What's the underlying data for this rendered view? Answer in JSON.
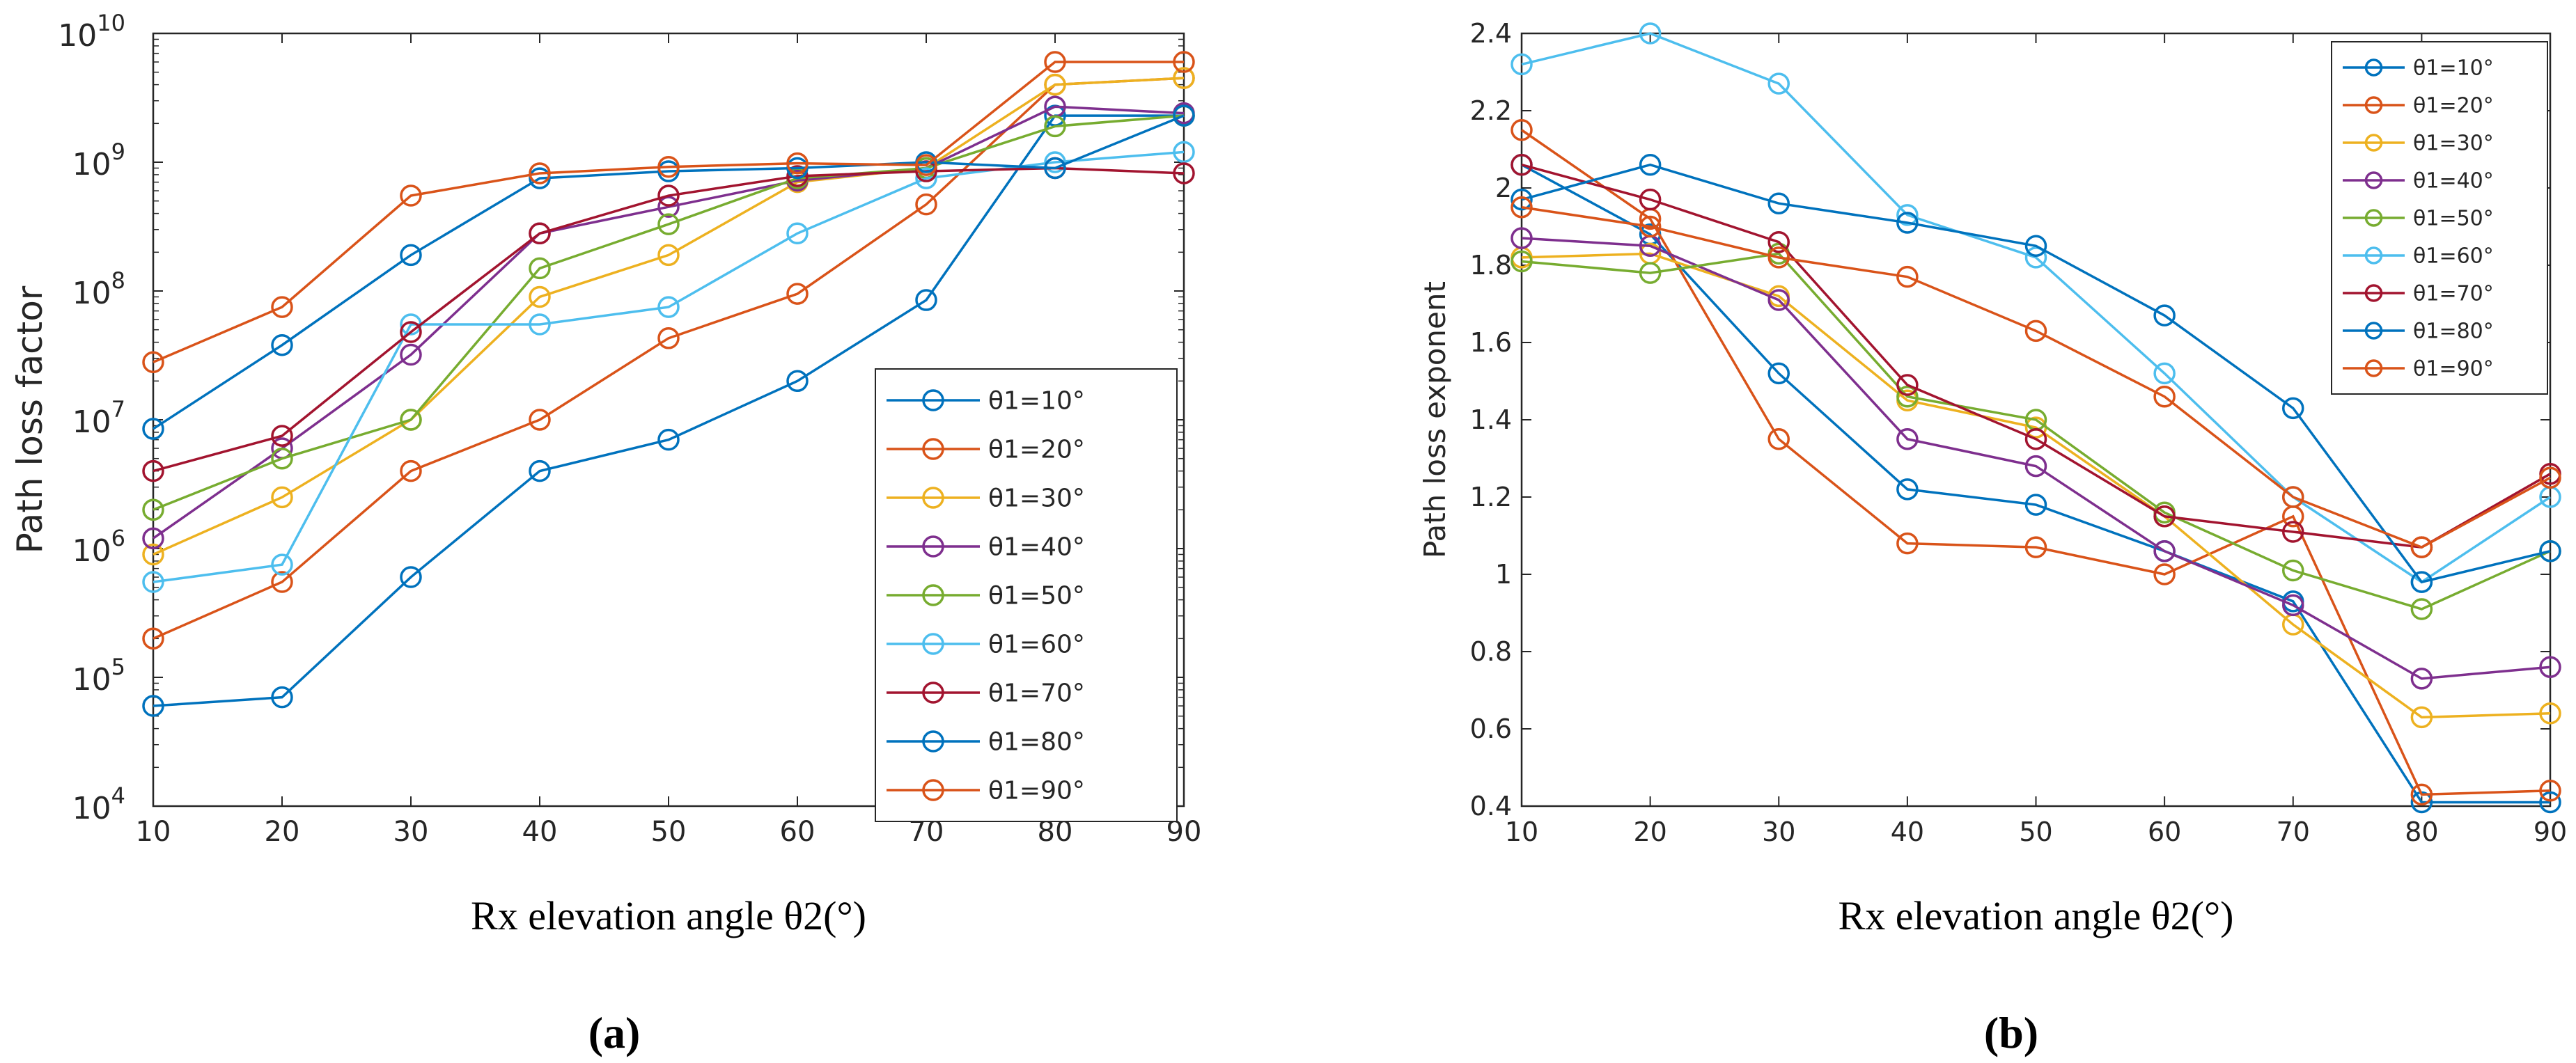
{
  "figure": {
    "panel_a_label": "(a)",
    "panel_b_label": "(b)"
  },
  "chart_data": [
    {
      "type": "line",
      "id": "a",
      "yscale": "log",
      "title": "",
      "xlabel": "Rx elevation angle θ2(°)",
      "ylabel": "Path loss factor",
      "x": [
        10,
        20,
        30,
        40,
        50,
        60,
        70,
        80,
        90
      ],
      "xlim": [
        10,
        90
      ],
      "ylim": [
        10000,
        10000000000
      ],
      "xticks": [
        "10",
        "20",
        "30",
        "40",
        "50",
        "60",
        "70",
        "80",
        "90"
      ],
      "yticks": [
        {
          "base": "10",
          "exp": "4"
        },
        {
          "base": "10",
          "exp": "5"
        },
        {
          "base": "10",
          "exp": "6"
        },
        {
          "base": "10",
          "exp": "7"
        },
        {
          "base": "10",
          "exp": "8"
        },
        {
          "base": "10",
          "exp": "9"
        },
        {
          "base": "10",
          "exp": "10"
        }
      ],
      "legend_position": "bottom-right",
      "series": [
        {
          "name": "θ1=10°",
          "color": "#0072BD",
          "values": [
            60000,
            70000,
            600000,
            4000000,
            7000000,
            20000000,
            85000000,
            2300000000,
            2300000000
          ]
        },
        {
          "name": "θ1=20°",
          "color": "#D95319",
          "values": [
            200000,
            550000,
            4000000,
            10000000,
            43000000,
            95000000,
            470000000,
            4000000000,
            4500000000
          ]
        },
        {
          "name": "θ1=30°",
          "color": "#EDB120",
          "values": [
            900000,
            2500000,
            10000000,
            90000000,
            190000000,
            700000000,
            900000000,
            4000000000,
            4500000000
          ]
        },
        {
          "name": "θ1=40°",
          "color": "#7E2F8E",
          "values": [
            1200000,
            6000000,
            32000000,
            280000000,
            450000000,
            720000000,
            900000000,
            2700000000,
            2400000000
          ]
        },
        {
          "name": "θ1=50°",
          "color": "#77AC30",
          "values": [
            2000000,
            5000000,
            10000000,
            150000000,
            330000000,
            750000000,
            900000000,
            1900000000,
            2300000000
          ]
        },
        {
          "name": "θ1=60°",
          "color": "#4DBEEE",
          "values": [
            550000,
            750000,
            55000000,
            55000000,
            75000000,
            280000000,
            750000000,
            1000000000,
            1200000000
          ]
        },
        {
          "name": "θ1=70°",
          "color": "#A2142F",
          "values": [
            4000000,
            7500000,
            48000000,
            280000000,
            550000000,
            780000000,
            850000000,
            900000000,
            820000000
          ]
        },
        {
          "name": "θ1=80°",
          "color": "#0072BD",
          "values": [
            8500000,
            38000000,
            190000000,
            750000000,
            850000000,
            900000000,
            1000000000,
            900000000,
            2300000000
          ]
        },
        {
          "name": "θ1=90°",
          "color": "#D95319",
          "values": [
            28000000,
            75000000,
            550000000,
            820000000,
            920000000,
            980000000,
            950000000,
            6000000000,
            6000000000
          ]
        }
      ]
    },
    {
      "type": "line",
      "id": "b",
      "yscale": "linear",
      "title": "",
      "xlabel": "Rx elevation angle θ2(°)",
      "ylabel": "Path loss exponent",
      "x": [
        10,
        20,
        30,
        40,
        50,
        60,
        70,
        80,
        90
      ],
      "xlim": [
        10,
        90
      ],
      "ylim": [
        0.4,
        2.4
      ],
      "xticks": [
        "10",
        "20",
        "30",
        "40",
        "50",
        "60",
        "70",
        "80",
        "90"
      ],
      "yticks": [
        "0.4",
        "0.6",
        "0.8",
        "1",
        "1.2",
        "1.4",
        "1.6",
        "1.8",
        "2",
        "2.2",
        "2.4"
      ],
      "legend_position": "top-right",
      "series": [
        {
          "name": "θ1=10°",
          "color": "#0072BD",
          "values": [
            2.06,
            1.88,
            1.52,
            1.22,
            1.18,
            1.06,
            0.93,
            0.41,
            0.41
          ]
        },
        {
          "name": "θ1=20°",
          "color": "#D95319",
          "values": [
            2.15,
            1.92,
            1.35,
            1.08,
            1.07,
            1.0,
            1.15,
            0.43,
            0.44
          ]
        },
        {
          "name": "θ1=30°",
          "color": "#EDB120",
          "values": [
            1.82,
            1.83,
            1.72,
            1.45,
            1.38,
            1.15,
            0.87,
            0.63,
            0.64
          ]
        },
        {
          "name": "θ1=40°",
          "color": "#7E2F8E",
          "values": [
            1.87,
            1.85,
            1.71,
            1.35,
            1.28,
            1.06,
            0.92,
            0.73,
            0.76
          ]
        },
        {
          "name": "θ1=50°",
          "color": "#77AC30",
          "values": [
            1.81,
            1.78,
            1.83,
            1.46,
            1.4,
            1.16,
            1.01,
            0.91,
            1.06
          ]
        },
        {
          "name": "θ1=60°",
          "color": "#4DBEEE",
          "values": [
            2.32,
            2.4,
            2.27,
            1.93,
            1.82,
            1.52,
            1.2,
            0.98,
            1.2
          ]
        },
        {
          "name": "θ1=70°",
          "color": "#A2142F",
          "values": [
            2.06,
            1.97,
            1.86,
            1.49,
            1.35,
            1.15,
            1.11,
            1.07,
            1.26
          ]
        },
        {
          "name": "θ1=80°",
          "color": "#0072BD",
          "values": [
            1.97,
            2.06,
            1.96,
            1.91,
            1.85,
            1.67,
            1.43,
            0.98,
            1.06
          ]
        },
        {
          "name": "θ1=90°",
          "color": "#D95319",
          "values": [
            1.95,
            1.9,
            1.82,
            1.77,
            1.63,
            1.46,
            1.2,
            1.07,
            1.25
          ]
        }
      ]
    }
  ]
}
